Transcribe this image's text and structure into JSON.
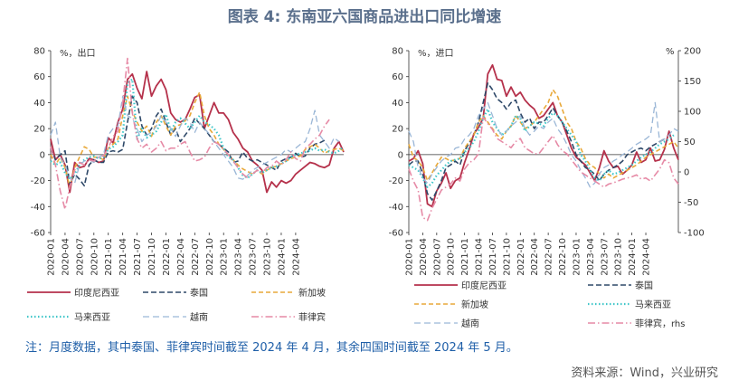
{
  "title": "图表 4: 东南亚六国商品进出口同比增速",
  "note": "注：月度数据，其中泰国、菲律宾时间截至 2024 年 4 月，其余四国时间截至 2024 年 5 月。",
  "source": "资料来源：Wind，兴业研究",
  "x_tick_labels": [
    "2020-01",
    "2020-04",
    "2020-07",
    "2020-10",
    "2021-01",
    "2021-04",
    "2021-07",
    "2021-10",
    "2022-01",
    "2022-04",
    "2022-07",
    "2022-10",
    "2023-01",
    "2023-04",
    "2023-07",
    "2023-10",
    "2024-01",
    "2024-04"
  ],
  "colors": {
    "印度尼西亚": "#b5314b",
    "泰国": "#2e4868",
    "新加坡": "#e8a93a",
    "马来西亚": "#3fc6c9",
    "越南": "#9ab6d6",
    "菲律宾": "#e68aa6"
  },
  "chart_data": [
    {
      "type": "line",
      "title": "",
      "unit_label": "%，出口",
      "xlabel": "",
      "ylabel": "",
      "ylim": [
        -60,
        80
      ],
      "yticks": [
        -60,
        -40,
        -20,
        0,
        20,
        40,
        60,
        80
      ],
      "x_start": "2020-01",
      "legend": "bottom",
      "legend_labels": [
        "印度尼西亚",
        "泰国",
        "新加坡",
        "马来西亚",
        "越南",
        "菲律宾"
      ],
      "series": [
        {
          "name": "印度尼西亚",
          "values": [
            12,
            -4,
            0,
            -8,
            -29,
            -6,
            -10,
            -9,
            -3,
            -4,
            -6,
            -5,
            13,
            9,
            25,
            35,
            58,
            62,
            51,
            43,
            64,
            45,
            53,
            58,
            50,
            32,
            27,
            25,
            27,
            35,
            44,
            46,
            20,
            30,
            40,
            32,
            32,
            27,
            17,
            12,
            5,
            2,
            -5,
            -8,
            -12,
            -29,
            -21,
            -25,
            -20,
            -22,
            -20,
            -15,
            -12,
            -9,
            -6,
            -7,
            -9,
            -10,
            -8,
            5,
            10,
            2
          ]
        },
        {
          "name": "泰国",
          "values": [
            5,
            -4,
            0,
            3,
            -23,
            -15,
            -19,
            -24,
            -8,
            -4,
            -6,
            -6,
            2,
            3,
            2,
            4,
            25,
            45,
            40,
            22,
            15,
            20,
            30,
            35,
            25,
            15,
            20,
            10,
            15,
            20,
            28,
            24,
            20,
            15,
            10,
            8,
            5,
            2,
            -6,
            -5,
            2,
            -3,
            -5,
            -4,
            -6,
            -8,
            -10,
            -12,
            -5,
            -3,
            -2,
            1,
            -2,
            -1,
            5,
            8,
            9,
            11
          ]
        },
        {
          "name": "新加坡",
          "values": [
            0,
            -8,
            -2,
            -10,
            -25,
            -10,
            -2,
            6,
            4,
            -2,
            -2,
            -4,
            5,
            8,
            12,
            30,
            45,
            33,
            25,
            18,
            22,
            14,
            25,
            30,
            22,
            15,
            22,
            23,
            26,
            30,
            40,
            48,
            30,
            20,
            15,
            8,
            4,
            0,
            -4,
            -8,
            -11,
            -13,
            -15,
            -12,
            -15,
            -12,
            -10,
            -9,
            -7,
            -5,
            -3,
            -2,
            -1,
            4,
            6,
            8,
            5,
            1,
            3,
            4,
            5,
            3
          ]
        },
        {
          "name": "马来西亚",
          "values": [
            -5,
            -8,
            -6,
            -14,
            -19,
            -15,
            -8,
            -4,
            -2,
            -1,
            -3,
            -2,
            4,
            6,
            10,
            15,
            55,
            58,
            12,
            20,
            13,
            15,
            18,
            25,
            31,
            18,
            25,
            28,
            24,
            20,
            25,
            30,
            25,
            23,
            20,
            15,
            5,
            -2,
            -4,
            -10,
            -16,
            -18,
            -15,
            -12,
            -14,
            -12,
            -10,
            -9,
            -7,
            -5,
            -2,
            0,
            1,
            2,
            3,
            5,
            3,
            4,
            2,
            1,
            3,
            6
          ]
        },
        {
          "name": "越南",
          "values": [
            15,
            25,
            -2,
            -8,
            -18,
            -22,
            -8,
            -5,
            -4,
            -6,
            -2,
            0,
            15,
            20,
            22,
            45,
            30,
            28,
            20,
            10,
            15,
            17,
            22,
            30,
            25,
            20,
            14,
            22,
            28,
            25,
            17,
            25,
            20,
            16,
            10,
            5,
            0,
            -5,
            -10,
            -18,
            -19,
            -16,
            -12,
            -10,
            -8,
            -6,
            -4,
            -2,
            0,
            4,
            2,
            5,
            8,
            10,
            20,
            34,
            15,
            10,
            5,
            13,
            10
          ]
        },
        {
          "name": "菲律宾",
          "values": [
            6,
            -8,
            -28,
            -42,
            -25,
            -12,
            -6,
            -8,
            -4,
            -5,
            -2,
            -1,
            5,
            14,
            18,
            40,
            74,
            32,
            12,
            5,
            8,
            2,
            5,
            10,
            3,
            5,
            5,
            8,
            10,
            2,
            -5,
            -4,
            -2,
            5,
            10,
            8,
            4,
            0,
            -5,
            -10,
            -15,
            -18,
            -15,
            -12,
            -14,
            -10,
            -9,
            -5,
            -8,
            -4,
            2,
            -3,
            -5,
            5,
            8,
            12,
            15,
            22,
            27
          ]
        }
      ]
    },
    {
      "type": "line",
      "title": "",
      "unit_label": "%，进口",
      "right_unit_label": "%",
      "xlabel": "",
      "ylabel": "",
      "ylim": [
        -60,
        80
      ],
      "yticks": [
        -60,
        -40,
        -20,
        0,
        20,
        40,
        60,
        80
      ],
      "y2lim": [
        -100,
        200
      ],
      "y2ticks": [
        -100,
        -50,
        0,
        50,
        100,
        150,
        200
      ],
      "x_start": "2020-01",
      "legend": "bottom",
      "legend_labels": [
        "印度尼西亚",
        "泰国",
        "新加坡",
        "马来西亚",
        "越南",
        "菲律宾，rhs"
      ],
      "series": [
        {
          "name": "印度尼西亚",
          "values": [
            -5,
            -3,
            3,
            -7,
            -38,
            -40,
            -28,
            -22,
            -14,
            -26,
            -20,
            -18,
            -6,
            4,
            16,
            21,
            28,
            62,
            69,
            58,
            57,
            45,
            52,
            45,
            48,
            42,
            38,
            35,
            28,
            30,
            35,
            40,
            30,
            25,
            15,
            5,
            -2,
            -5,
            -8,
            -14,
            -20,
            -10,
            3,
            -5,
            -10,
            -9,
            -15,
            -12,
            -8,
            2,
            -6,
            -4,
            5,
            -5,
            -4,
            4,
            18,
            5,
            -4
          ]
        },
        {
          "name": "泰国",
          "values": [
            -8,
            -5,
            -5,
            -15,
            -30,
            -35,
            -28,
            -20,
            -10,
            -8,
            -5,
            -8,
            3,
            9,
            15,
            25,
            40,
            55,
            50,
            43,
            40,
            35,
            40,
            42,
            32,
            25,
            28,
            20,
            25,
            25,
            30,
            36,
            30,
            25,
            18,
            10,
            0,
            -5,
            -10,
            -12,
            -15,
            -20,
            -15,
            -12,
            -10,
            -8,
            -5,
            0,
            2,
            4,
            5,
            3,
            6,
            8,
            10,
            12
          ]
        },
        {
          "name": "新加坡",
          "values": [
            8,
            -2,
            -5,
            -10,
            -20,
            -14,
            -8,
            -2,
            -3,
            -5,
            -4,
            -3,
            5,
            10,
            15,
            25,
            30,
            25,
            20,
            15,
            12,
            18,
            22,
            30,
            25,
            20,
            22,
            25,
            30,
            35,
            40,
            50,
            45,
            35,
            25,
            20,
            10,
            5,
            -3,
            -8,
            -10,
            -15,
            -18,
            -15,
            -18,
            -16,
            -14,
            -12,
            -10,
            -8,
            -5,
            -2,
            0,
            2,
            4,
            6,
            8,
            10,
            5
          ]
        },
        {
          "name": "马来西亚",
          "values": [
            -8,
            -10,
            -12,
            -18,
            -25,
            -22,
            -16,
            -12,
            -8,
            -5,
            -4,
            -3,
            2,
            5,
            10,
            18,
            28,
            35,
            25,
            20,
            15,
            18,
            22,
            30,
            28,
            18,
            22,
            25,
            24,
            22,
            28,
            32,
            30,
            25,
            20,
            15,
            10,
            0,
            -5,
            -12,
            -18,
            -20,
            -15,
            -12,
            -15,
            -14,
            -12,
            -10,
            -8,
            -5,
            -2,
            0,
            2,
            5,
            8,
            10,
            12,
            15
          ]
        },
        {
          "name": "越南",
          "values": [
            18,
            10,
            -10,
            -18,
            -22,
            -15,
            -10,
            -5,
            -2,
            0,
            5,
            6,
            12,
            15,
            20,
            30,
            35,
            40,
            30,
            20,
            15,
            18,
            22,
            25,
            30,
            20,
            15,
            18,
            22,
            20,
            25,
            28,
            20,
            15,
            8,
            0,
            -5,
            -12,
            -18,
            -25,
            -22,
            -15,
            -10,
            -8,
            -5,
            -3,
            0,
            2,
            5,
            8,
            10,
            12,
            15,
            40,
            10,
            12,
            15,
            20,
            18
          ]
        },
        {
          "name": "菲律宾",
          "axis": "right",
          "values": [
            5,
            -15,
            -30,
            -75,
            -80,
            -60,
            -45,
            -30,
            -25,
            -20,
            -10,
            -15,
            5,
            15,
            20,
            30,
            90,
            80,
            70,
            55,
            50,
            45,
            40,
            50,
            55,
            40,
            35,
            30,
            30,
            40,
            50,
            60,
            45,
            35,
            30,
            20,
            10,
            0,
            -5,
            -10,
            -15,
            -20,
            -25,
            -20,
            -18,
            -15,
            -12,
            -10,
            -8,
            -5,
            -12,
            -10,
            -15,
            -5,
            5,
            20,
            15,
            -10,
            -20
          ]
        }
      ]
    }
  ]
}
